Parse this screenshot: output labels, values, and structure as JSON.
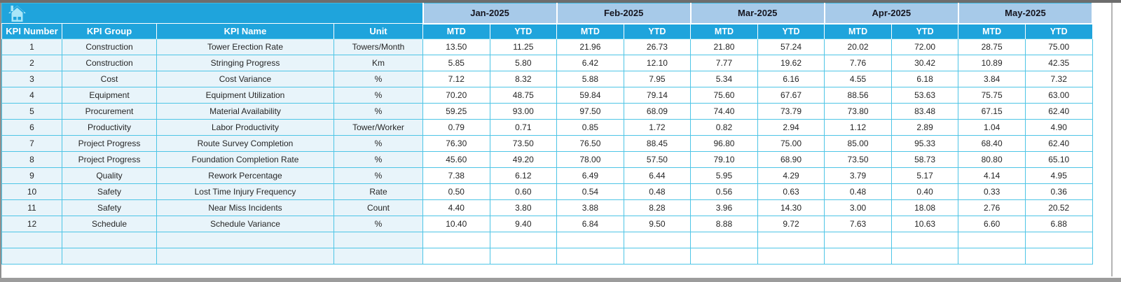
{
  "header": {
    "columns": [
      "KPI Number",
      "KPI Group",
      "KPI Name",
      "Unit"
    ],
    "months": [
      "Jan-2025",
      "Feb-2025",
      "Mar-2025",
      "Apr-2025",
      "May-2025"
    ],
    "period_types": [
      "MTD",
      "YTD"
    ],
    "home_icon": "home"
  },
  "rows": [
    {
      "number": "1",
      "group": "Construction",
      "name": "Tower Erection Rate",
      "unit": "Towers/Month",
      "values": [
        "13.50",
        "11.25",
        "21.96",
        "26.73",
        "21.80",
        "57.24",
        "20.02",
        "72.00",
        "28.75",
        "75.00"
      ]
    },
    {
      "number": "2",
      "group": "Construction",
      "name": "Stringing Progress",
      "unit": "Km",
      "values": [
        "5.85",
        "5.80",
        "6.42",
        "12.10",
        "7.77",
        "19.62",
        "7.76",
        "30.42",
        "10.89",
        "42.35"
      ]
    },
    {
      "number": "3",
      "group": "Cost",
      "name": "Cost Variance",
      "unit": "%",
      "values": [
        "7.12",
        "8.32",
        "5.88",
        "7.95",
        "5.34",
        "6.16",
        "4.55",
        "6.18",
        "3.84",
        "7.32"
      ]
    },
    {
      "number": "4",
      "group": "Equipment",
      "name": "Equipment Utilization",
      "unit": "%",
      "values": [
        "70.20",
        "48.75",
        "59.84",
        "79.14",
        "75.60",
        "67.67",
        "88.56",
        "53.63",
        "75.75",
        "63.00"
      ]
    },
    {
      "number": "5",
      "group": "Procurement",
      "name": "Material Availability",
      "unit": "%",
      "values": [
        "59.25",
        "93.00",
        "97.50",
        "68.09",
        "74.40",
        "73.79",
        "73.80",
        "83.48",
        "67.15",
        "62.40"
      ]
    },
    {
      "number": "6",
      "group": "Productivity",
      "name": "Labor Productivity",
      "unit": "Tower/Worker",
      "values": [
        "0.79",
        "0.71",
        "0.85",
        "1.72",
        "0.82",
        "2.94",
        "1.12",
        "2.89",
        "1.04",
        "4.90"
      ]
    },
    {
      "number": "7",
      "group": "Project Progress",
      "name": "Route Survey Completion",
      "unit": "%",
      "values": [
        "76.30",
        "73.50",
        "76.50",
        "88.45",
        "96.80",
        "75.00",
        "85.00",
        "95.33",
        "68.40",
        "62.40"
      ]
    },
    {
      "number": "8",
      "group": "Project Progress",
      "name": "Foundation Completion Rate",
      "unit": "%",
      "values": [
        "45.60",
        "49.20",
        "78.00",
        "57.50",
        "79.10",
        "68.90",
        "73.50",
        "58.73",
        "80.80",
        "65.10"
      ]
    },
    {
      "number": "9",
      "group": "Quality",
      "name": "Rework Percentage",
      "unit": "%",
      "values": [
        "7.38",
        "6.12",
        "6.49",
        "6.44",
        "5.95",
        "4.29",
        "3.79",
        "5.17",
        "4.14",
        "4.95"
      ]
    },
    {
      "number": "10",
      "group": "Safety",
      "name": "Lost Time Injury Frequency",
      "unit": "Rate",
      "values": [
        "0.50",
        "0.60",
        "0.54",
        "0.48",
        "0.56",
        "0.63",
        "0.48",
        "0.40",
        "0.33",
        "0.36"
      ]
    },
    {
      "number": "11",
      "group": "Safety",
      "name": "Near Miss Incidents",
      "unit": "Count",
      "values": [
        "4.40",
        "3.80",
        "3.88",
        "8.28",
        "3.96",
        "14.30",
        "3.00",
        "18.08",
        "2.76",
        "20.52"
      ]
    },
    {
      "number": "12",
      "group": "Schedule",
      "name": "Schedule Variance",
      "unit": "%",
      "values": [
        "10.40",
        "9.40",
        "6.84",
        "9.50",
        "8.88",
        "9.72",
        "7.63",
        "10.63",
        "6.60",
        "6.88"
      ]
    }
  ],
  "empty_row_count": 2,
  "colors": {
    "header_teal": "#1fa4dc",
    "month_blue": "#a7cae9",
    "row_tint": "#e8f4fa",
    "grid_cyan": "#4ec5e6",
    "home_icon_fill": "#a9e6f8"
  }
}
